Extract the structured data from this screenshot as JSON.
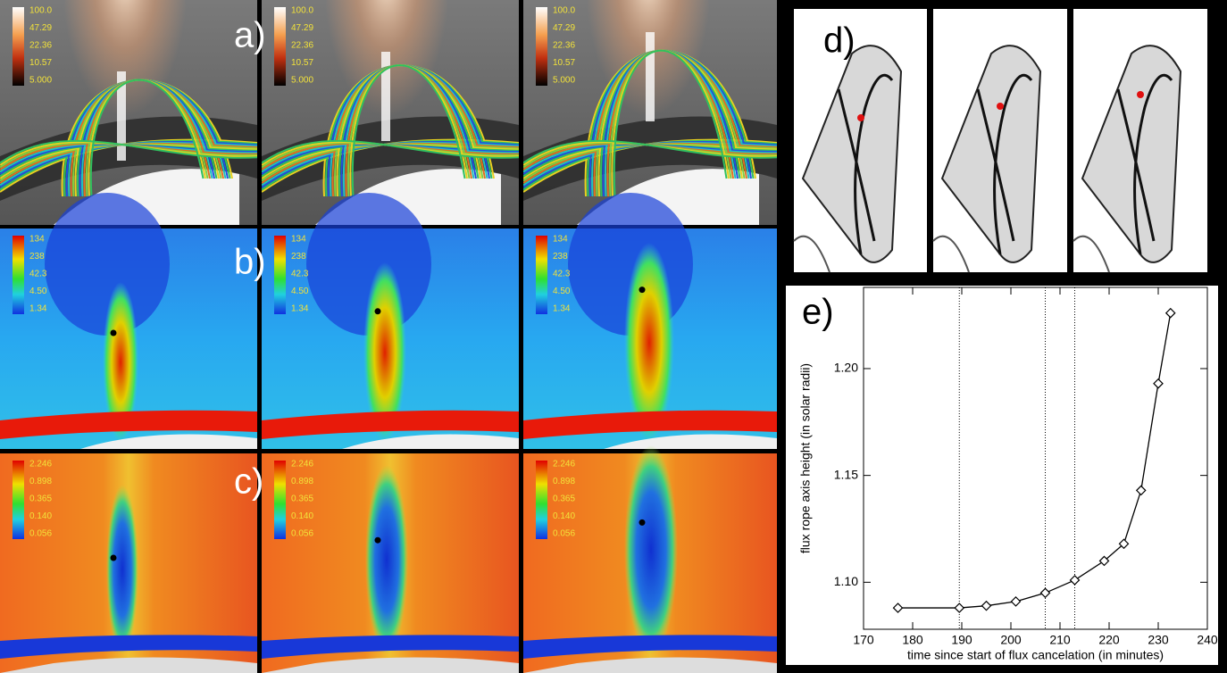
{
  "panels": {
    "a": {
      "label": "a)",
      "colorbar": [
        "100.0",
        "47.29",
        "22.36",
        "10.57",
        "5.000"
      ]
    },
    "b": {
      "label": "b)",
      "colorbar": [
        "134",
        "238",
        "42.3",
        "4.50",
        "1.34"
      ]
    },
    "c": {
      "label": "c)",
      "colorbar": [
        "2.246",
        "0.898",
        "0.365",
        "0.140",
        "0.056"
      ]
    },
    "d": {
      "label": "d)"
    }
  },
  "chart_data": {
    "type": "line",
    "label": "e)",
    "x_label": "time since start of flux cancelation (in minutes)",
    "y_label": "flux rope axis height (in solar radii)",
    "x": [
      177,
      189.5,
      195,
      201,
      207,
      213,
      219,
      223,
      226.5,
      230,
      232.5
    ],
    "series": [
      {
        "color": "#000000",
        "values": [
          1.088,
          1.088,
          1.089,
          1.091,
          1.095,
          1.101,
          1.11,
          1.118,
          1.143,
          1.193,
          1.226
        ]
      }
    ],
    "xlim": [
      170,
      240
    ],
    "xticks": [
      170,
      180,
      190,
      200,
      210,
      220,
      230,
      240
    ],
    "ylim": [
      1.078,
      1.238
    ],
    "yticks": [
      {
        "value": 1.1,
        "label": "1.10"
      },
      {
        "value": 1.15,
        "label": "1.15"
      },
      {
        "value": 1.2,
        "label": "1.20"
      }
    ],
    "vlines": [
      189.5,
      207,
      213
    ]
  }
}
